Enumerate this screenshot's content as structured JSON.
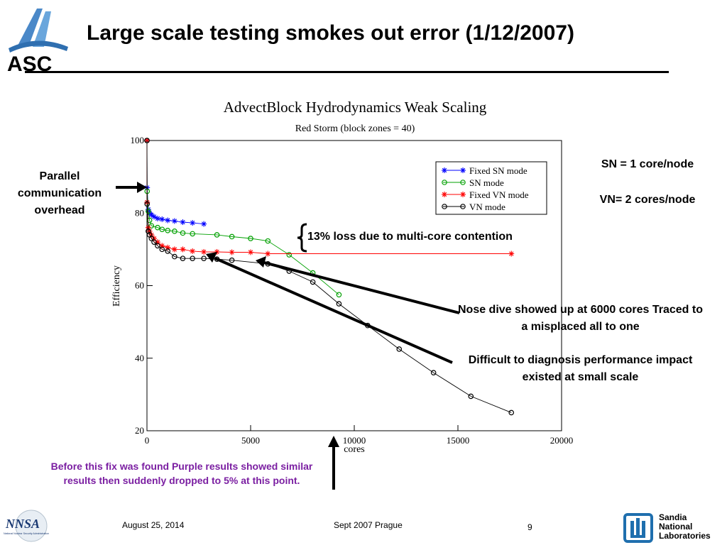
{
  "slide": {
    "title": "Large scale testing smokes out error (1/12/2007)",
    "logo_text": "ASC"
  },
  "notes": {
    "parallel": "Parallel communication overhead",
    "sn": "SN = 1 core/node",
    "vn": "VN= 2 cores/node",
    "loss": "13% loss due to multi-core contention",
    "nose": "Nose dive showed up at 6000 cores Traced to a misplaced all to one",
    "difficult": "Difficult to diagnosis performance impact existed at small scale",
    "before": "Before this fix was found Purple results showed similar results then suddenly  dropped to 5% at this point."
  },
  "footer": {
    "date": "August 25, 2014",
    "event": "Sept 2007 Prague",
    "page": "9",
    "nnsa_logo": "NNSA",
    "nnsa_subtext": "National Nuclear Security Administration",
    "sandia_lines": [
      "Sandia",
      "National",
      "Laboratories"
    ]
  },
  "colors": {
    "fixed_sn": "#0000ff",
    "sn": "#00a000",
    "fixed_vn": "#ff0000",
    "vn": "#000000",
    "purple_note": "#7b1fa2",
    "sandia_blue": "#1f6fae"
  },
  "chart_data": {
    "type": "line",
    "title": "AdvectBlock Hydrodynamics Weak Scaling",
    "subtitle": "Red Storm (block zones = 40)",
    "xlabel": "cores",
    "ylabel": "Efficiency",
    "xlim": [
      0,
      20000
    ],
    "ylim": [
      20,
      100
    ],
    "xticks": [
      0,
      5000,
      10000,
      15000,
      20000
    ],
    "yticks": [
      20,
      40,
      60,
      80,
      100
    ],
    "legend_position": "top-right",
    "series": [
      {
        "name": "Fixed SN mode",
        "color": "#0000ff",
        "marker": "star",
        "x": [
          1,
          8,
          64,
          125,
          216,
          343,
          512,
          729,
          1000,
          1331,
          1728,
          2197,
          2744
        ],
        "y": [
          100,
          87,
          81,
          80,
          79.5,
          79,
          78.5,
          78.3,
          78,
          77.8,
          77.5,
          77.3,
          77
        ]
      },
      {
        "name": "SN mode",
        "color": "#00a000",
        "marker": "circle",
        "x": [
          1,
          8,
          64,
          125,
          216,
          512,
          729,
          1000,
          1331,
          1728,
          2197,
          3375,
          4096,
          5000,
          5832,
          6859,
          8000,
          9261
        ],
        "y": [
          100,
          86,
          80.5,
          78,
          76.5,
          76,
          75.5,
          75.2,
          75,
          74.5,
          74.3,
          74,
          73.5,
          73,
          72.3,
          68.5,
          63.5,
          57.5
        ]
      },
      {
        "name": "Fixed VN mode",
        "color": "#ff0000",
        "marker": "star",
        "x": [
          1,
          8,
          64,
          125,
          216,
          343,
          512,
          729,
          1000,
          1331,
          1728,
          2197,
          2744,
          3375,
          4096,
          5000,
          5832,
          17576
        ],
        "y": [
          100,
          83,
          76,
          75,
          74,
          73,
          72,
          71,
          70.5,
          70,
          70,
          69.5,
          69.3,
          69.3,
          69.2,
          69.2,
          68.8,
          68.8
        ]
      },
      {
        "name": "VN mode",
        "color": "#000000",
        "marker": "circle",
        "x": [
          1,
          8,
          64,
          125,
          216,
          343,
          512,
          729,
          1000,
          1331,
          1728,
          2197,
          2744,
          3375,
          4096,
          5832,
          6859,
          8000,
          9261,
          10648,
          12167,
          13824,
          15625,
          17576
        ],
        "y": [
          100,
          82.5,
          75,
          74,
          73,
          72,
          71,
          70,
          69.5,
          68,
          67.5,
          67.5,
          67.5,
          67.3,
          67,
          66,
          64,
          61,
          55,
          49,
          42.5,
          36,
          29.5,
          25
        ]
      }
    ]
  }
}
